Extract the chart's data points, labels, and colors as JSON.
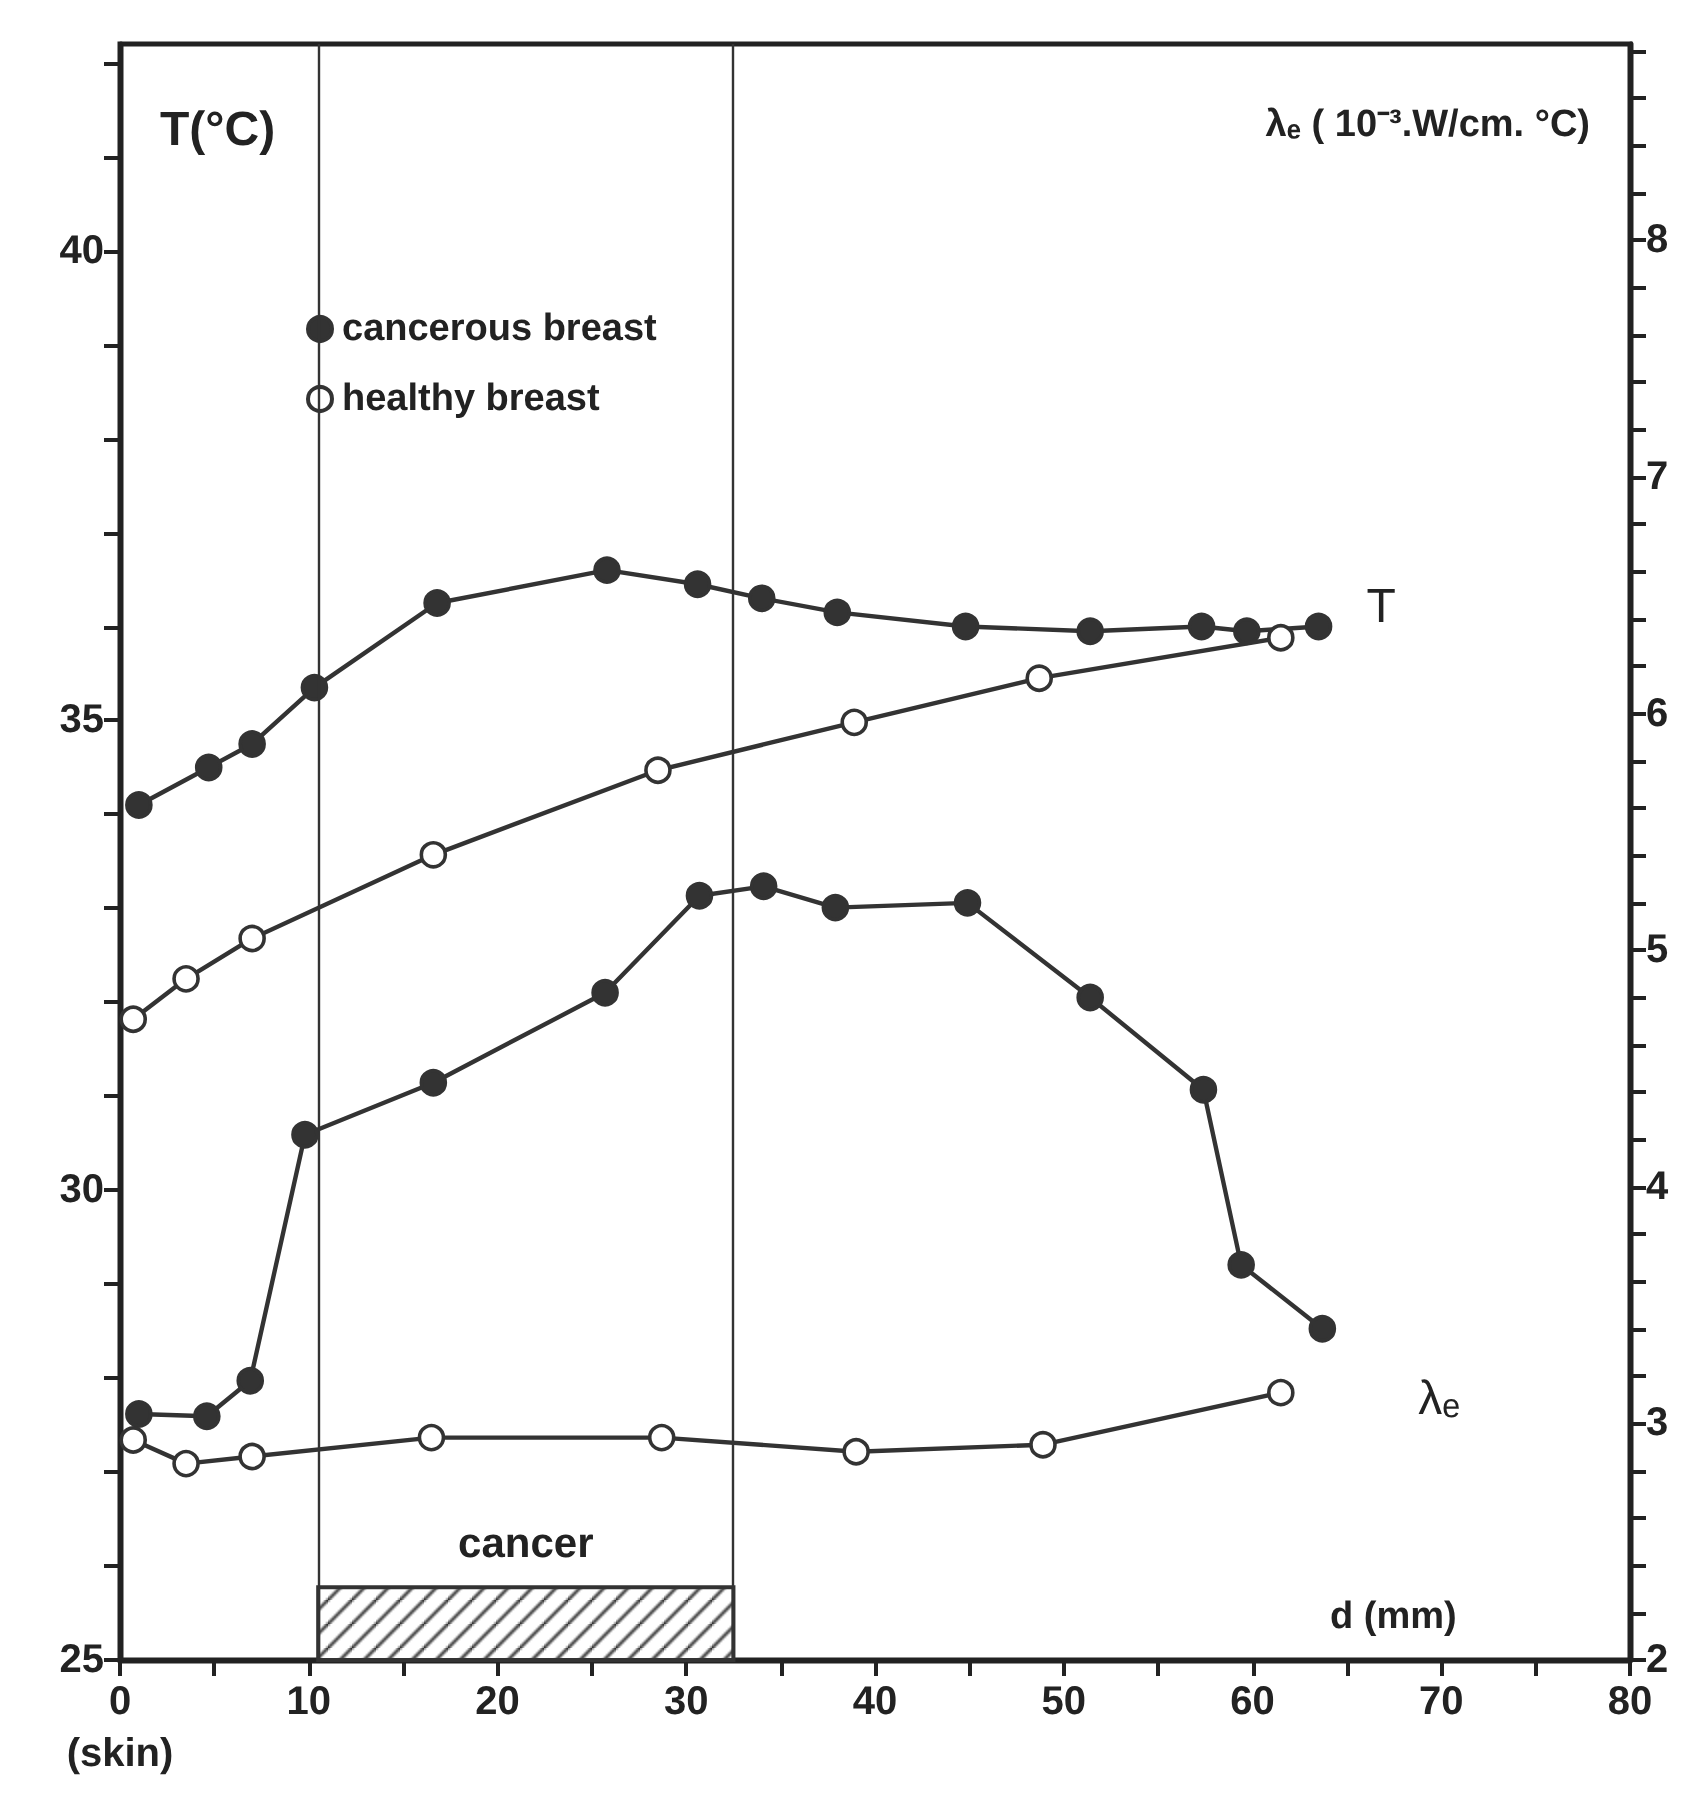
{
  "chart_data": {
    "type": "line",
    "xlabel": "d (mm)",
    "ylabel": "T(°C)",
    "y2label": "λₑ ( 10⁻³.W/cm. °C)",
    "xlim": [
      0,
      80
    ],
    "xticks": [
      {
        "value": 0,
        "label": "0\n(skin)"
      },
      {
        "value": 5,
        "label": null
      },
      10,
      {
        "value": 15,
        "label": null
      },
      20,
      {
        "value": 25,
        "label": null
      },
      30,
      {
        "value": 35,
        "label": null
      },
      40,
      {
        "value": 45,
        "label": null
      },
      50,
      {
        "value": 55,
        "label": null
      },
      60,
      {
        "value": 65,
        "label": null
      },
      70,
      {
        "value": 75,
        "label": null
      },
      80
    ],
    "ylim": [
      25,
      42.2
    ],
    "yticks": [
      25,
      {
        "value": 26,
        "label": null
      },
      {
        "value": 27,
        "label": null
      },
      {
        "value": 28,
        "label": null
      },
      {
        "value": 29,
        "label": null
      },
      30,
      {
        "value": 31,
        "label": null
      },
      {
        "value": 32,
        "label": null
      },
      {
        "value": 33,
        "label": null
      },
      {
        "value": 34,
        "label": null
      },
      35,
      {
        "value": 36,
        "label": null
      },
      {
        "value": 37,
        "label": null
      },
      {
        "value": 38,
        "label": null
      },
      {
        "value": 39,
        "label": null
      },
      40,
      {
        "value": 41,
        "label": null
      },
      {
        "value": 42,
        "label": null
      }
    ],
    "y2lim": [
      2,
      8.83
    ],
    "y2ticks": [
      2,
      {
        "value": 2.2,
        "label": null
      },
      {
        "value": 2.4,
        "label": null
      },
      {
        "value": 2.6,
        "label": null
      },
      {
        "value": 2.8,
        "label": null
      },
      3,
      {
        "value": 3.2,
        "label": null
      },
      {
        "value": 3.4,
        "label": null
      },
      {
        "value": 3.6,
        "label": null
      },
      {
        "value": 3.8,
        "label": null
      },
      4,
      {
        "value": 4.2,
        "label": null
      },
      {
        "value": 4.4,
        "label": null
      },
      {
        "value": 4.6,
        "label": null
      },
      {
        "value": 4.8,
        "label": null
      },
      5,
      {
        "value": 5.2,
        "label": null
      },
      {
        "value": 5.4,
        "label": null
      },
      {
        "value": 5.6,
        "label": null
      },
      {
        "value": 5.8,
        "label": null
      },
      6,
      {
        "value": 6.2,
        "label": null
      },
      {
        "value": 6.4,
        "label": null
      },
      {
        "value": 6.6,
        "label": null
      },
      {
        "value": 6.8,
        "label": null
      },
      7,
      {
        "value": 7.2,
        "label": null
      },
      {
        "value": 7.4,
        "label": null
      },
      {
        "value": 7.6,
        "label": null
      },
      {
        "value": 7.8,
        "label": null
      },
      8,
      {
        "value": 8.2,
        "label": null
      },
      {
        "value": 8.4,
        "label": null
      },
      {
        "value": 8.6,
        "label": null
      },
      {
        "value": 8.8,
        "label": null
      }
    ],
    "grid": false,
    "legend": "top left",
    "marker": "circle",
    "line_style": "solid",
    "series": [
      {
        "name": "cancerous breast",
        "color": "#333333",
        "x": [
          1.0,
          4.7,
          7.0,
          10.3,
          16.8,
          25.8,
          30.6,
          34.0,
          38.0,
          44.8,
          51.4,
          57.3,
          59.7,
          63.5
        ],
        "values": [
          34.1,
          34.5,
          34.75,
          35.35,
          36.25,
          36.6,
          36.45,
          36.3,
          36.15,
          36.0,
          35.95,
          36.0,
          35.95,
          36.0
        ]
      },
      {
        "name": "healthy breast",
        "color": "#ffffff",
        "x": [
          0.7,
          3.5,
          7.0,
          16.6,
          28.5,
          38.9,
          48.7,
          61.5
        ],
        "values": [
          31.82,
          32.25,
          32.68,
          33.57,
          34.47,
          34.98,
          35.45,
          35.88
        ]
      },
      {
        "color": "#333333",
        "axis": "y2",
        "x": [
          1.0,
          4.6,
          6.9,
          9.8,
          16.6,
          25.7,
          30.7,
          34.1,
          37.9,
          44.9,
          51.4,
          57.4,
          59.4,
          63.7
        ],
        "values": [
          3.04,
          3.03,
          3.18,
          4.22,
          4.44,
          4.82,
          5.23,
          5.27,
          5.18,
          5.2,
          4.8,
          4.41,
          3.67,
          3.4
        ]
      },
      {
        "color": "#ffffff",
        "axis": "y2",
        "x": [
          0.7,
          3.5,
          7.0,
          16.5,
          28.7,
          39.0,
          48.9,
          61.5
        ],
        "values": [
          2.93,
          2.83,
          2.86,
          2.94,
          2.94,
          2.88,
          2.91,
          3.13
        ]
      }
    ],
    "ref_lines": [
      {
        "axis": "x",
        "value": 10.5,
        "label": null
      },
      {
        "axis": "x",
        "value": 32.5,
        "label": null
      }
    ],
    "bands": [
      {
        "axis": "x",
        "from": 10.5,
        "to": 32.5,
        "label": "cancer",
        "color": "#333333"
      }
    ],
    "annotations": [
      "T",
      "λₑ"
    ]
  }
}
